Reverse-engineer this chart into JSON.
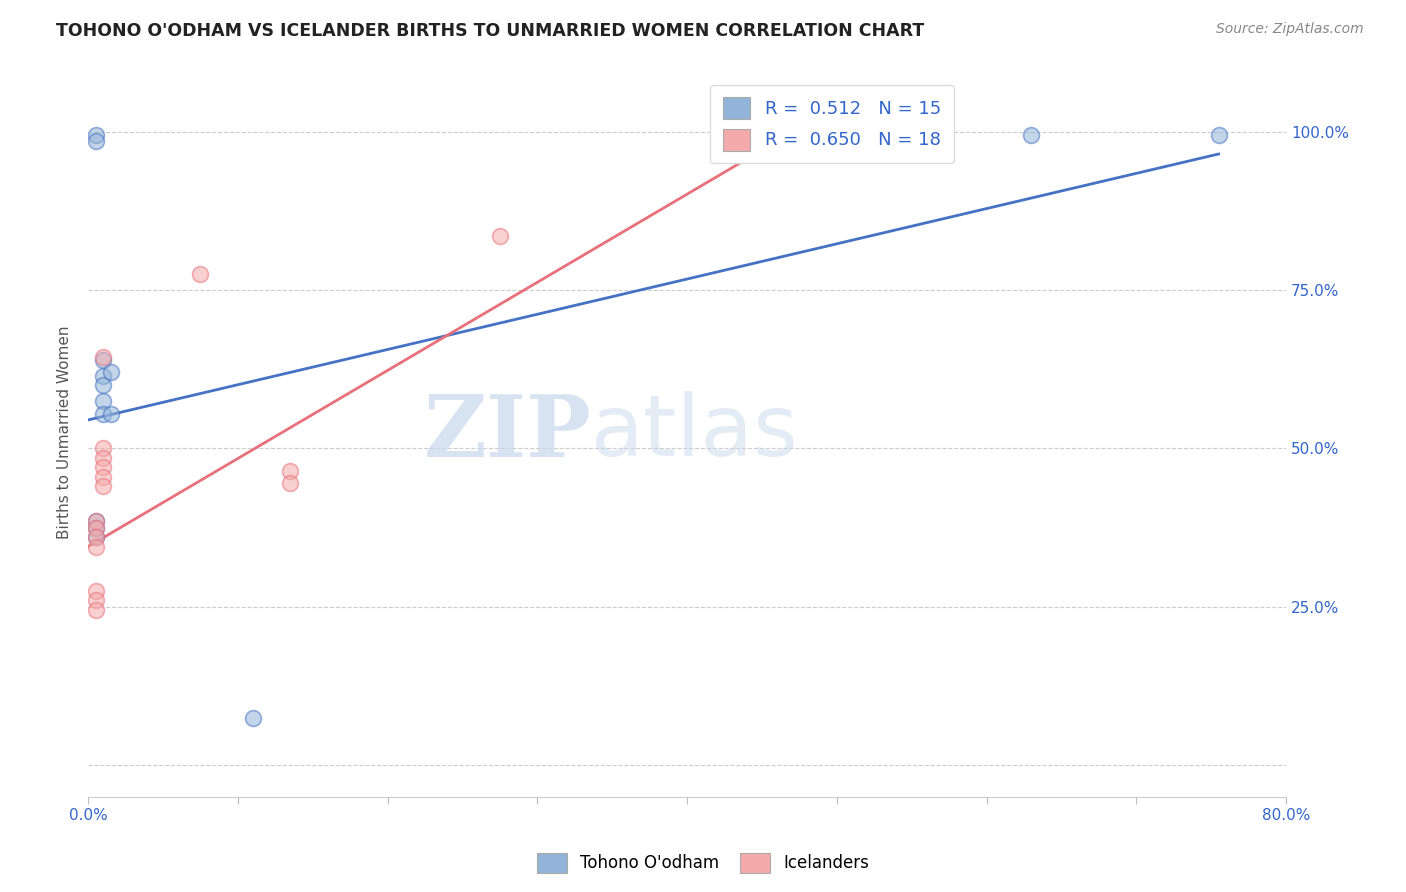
{
  "title": "TOHONO O'ODHAM VS ICELANDER BIRTHS TO UNMARRIED WOMEN CORRELATION CHART",
  "source": "Source: ZipAtlas.com",
  "ylabel": "Births to Unmarried Women",
  "xlim": [
    0.0,
    0.8
  ],
  "ylim": [
    -0.05,
    1.1
  ],
  "x_ticks": [
    0.0,
    0.1,
    0.2,
    0.3,
    0.4,
    0.5,
    0.6,
    0.7,
    0.8
  ],
  "x_tick_labels": [
    "0.0%",
    "",
    "",
    "",
    "",
    "",
    "",
    "",
    "80.0%"
  ],
  "y_ticks": [
    0.0,
    0.25,
    0.5,
    0.75,
    1.0
  ],
  "y_tick_labels": [
    "",
    "25.0%",
    "50.0%",
    "75.0%",
    "100.0%"
  ],
  "legend_labels": [
    "Tohono O'odham",
    "Icelanders"
  ],
  "blue_R": "0.512",
  "blue_N": "15",
  "pink_R": "0.650",
  "pink_N": "18",
  "blue_color": "#92B4D8",
  "pink_color": "#F4AAAA",
  "blue_line_color": "#4472C4",
  "pink_line_color": "#E8707A",
  "watermark_zip": "ZIP",
  "watermark_atlas": "atlas",
  "blue_scatter_x": [
    0.005,
    0.005,
    0.01,
    0.01,
    0.01,
    0.01,
    0.01,
    0.015,
    0.015,
    0.005,
    0.005,
    0.005,
    0.11,
    0.63,
    0.755
  ],
  "blue_scatter_y": [
    0.995,
    0.985,
    0.64,
    0.615,
    0.6,
    0.575,
    0.555,
    0.62,
    0.555,
    0.385,
    0.375,
    0.36,
    0.075,
    0.995,
    0.995
  ],
  "pink_scatter_x": [
    0.005,
    0.005,
    0.005,
    0.005,
    0.005,
    0.005,
    0.005,
    0.01,
    0.01,
    0.01,
    0.01,
    0.01,
    0.01,
    0.075,
    0.135,
    0.135,
    0.275,
    0.46
  ],
  "pink_scatter_y": [
    0.385,
    0.375,
    0.36,
    0.345,
    0.275,
    0.26,
    0.245,
    0.5,
    0.485,
    0.47,
    0.455,
    0.44,
    0.645,
    0.775,
    0.465,
    0.445,
    0.835,
    0.98
  ],
  "blue_trend_x": [
    0.0,
    0.755
  ],
  "blue_trend_y": [
    0.545,
    0.965
  ],
  "pink_trend_x": [
    0.0,
    0.46
  ],
  "pink_trend_y": [
    0.345,
    0.985
  ]
}
